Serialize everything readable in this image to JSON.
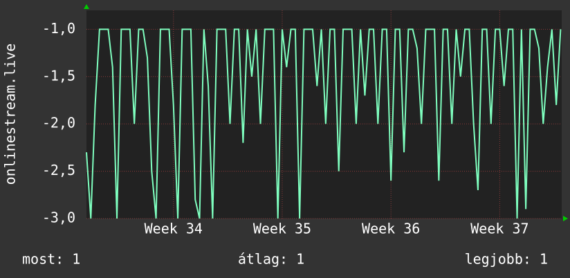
{
  "chart_data": {
    "type": "line",
    "y_label": "onlinestream.live",
    "x": [
      33.2,
      33.24,
      33.28,
      33.32,
      33.36,
      33.4,
      33.44,
      33.48,
      33.52,
      33.56,
      33.6,
      33.64,
      33.68,
      33.72,
      33.76,
      33.8,
      33.84,
      33.88,
      33.92,
      33.96,
      34.0,
      34.04,
      34.08,
      34.12,
      34.16,
      34.2,
      34.24,
      34.28,
      34.32,
      34.36,
      34.4,
      34.44,
      34.48,
      34.52,
      34.56,
      34.6,
      34.64,
      34.68,
      34.72,
      34.76,
      34.8,
      34.84,
      34.88,
      34.92,
      34.96,
      35.0,
      35.04,
      35.08,
      35.12,
      35.16,
      35.2,
      35.24,
      35.28,
      35.32,
      35.36,
      35.4,
      35.44,
      35.48,
      35.52,
      35.56,
      35.6,
      35.64,
      35.68,
      35.72,
      35.76,
      35.8,
      35.84,
      35.88,
      35.92,
      35.96,
      36.0,
      36.04,
      36.08,
      36.12,
      36.16,
      36.2,
      36.24,
      36.28,
      36.32,
      36.36,
      36.4,
      36.44,
      36.48,
      36.52,
      36.56,
      36.6,
      36.64,
      36.68,
      36.72,
      36.76,
      36.8,
      36.84,
      36.88,
      36.92,
      36.96,
      37.0,
      37.04,
      37.08,
      37.12,
      37.16,
      37.2,
      37.24,
      37.28,
      37.32,
      37.36,
      37.4,
      37.44,
      37.48,
      37.52,
      37.56
    ],
    "series": [
      {
        "name": "onlinestream.live",
        "color": "#7fffbf",
        "values": [
          -2.3,
          -3,
          -1.8,
          -1,
          -1,
          -1,
          -1.4,
          -3,
          -1,
          -1,
          -1,
          -2,
          -1,
          -1,
          -1.3,
          -2.5,
          -3,
          -1,
          -1,
          -1,
          -1.8,
          -3,
          -1,
          -1,
          -1,
          -2.8,
          -3,
          -1,
          -1.6,
          -3,
          -1,
          -1,
          -1,
          -2,
          -1,
          -1,
          -2.2,
          -1,
          -1.5,
          -1,
          -2,
          -1,
          -1,
          -1,
          -3,
          -1,
          -1.4,
          -1,
          -1,
          -3,
          -1,
          -1,
          -1,
          -1.6,
          -1,
          -2,
          -1,
          -1,
          -2.5,
          -1,
          -1,
          -1,
          -2,
          -1,
          -1.7,
          -1,
          -1,
          -2,
          -1,
          -1,
          -2.6,
          -1,
          -1,
          -2.3,
          -1,
          -1,
          -1.2,
          -2,
          -1,
          -1,
          -1,
          -2.6,
          -1,
          -1,
          -2,
          -1,
          -1.5,
          -1,
          -1,
          -2,
          -2.7,
          -1,
          -1,
          -2,
          -1,
          -1,
          -1.6,
          -1,
          -1,
          -3,
          -1,
          -2.9,
          -1,
          -1,
          -1.2,
          -2,
          -1.4,
          -1,
          -1.8,
          -1
        ]
      }
    ],
    "xlim": [
      33.2,
      37.57
    ],
    "xticks": [
      {
        "value": 34,
        "label": "Week 34"
      },
      {
        "value": 35,
        "label": "Week 35"
      },
      {
        "value": 36,
        "label": "Week 36"
      },
      {
        "value": 37,
        "label": "Week 37"
      }
    ],
    "ylim": [
      -3,
      -0.8
    ],
    "yticks": [
      {
        "value": -1,
        "label": "-1,0"
      },
      {
        "value": -1.5,
        "label": "-1,5"
      },
      {
        "value": -2,
        "label": "-2,0"
      },
      {
        "value": -2.5,
        "label": "-2,5"
      },
      {
        "value": -3,
        "label": "-3,0"
      }
    ],
    "grid": true,
    "footer": {
      "current": "most: 1",
      "average": "átlag: 1",
      "best": "legjobb: 1"
    }
  }
}
